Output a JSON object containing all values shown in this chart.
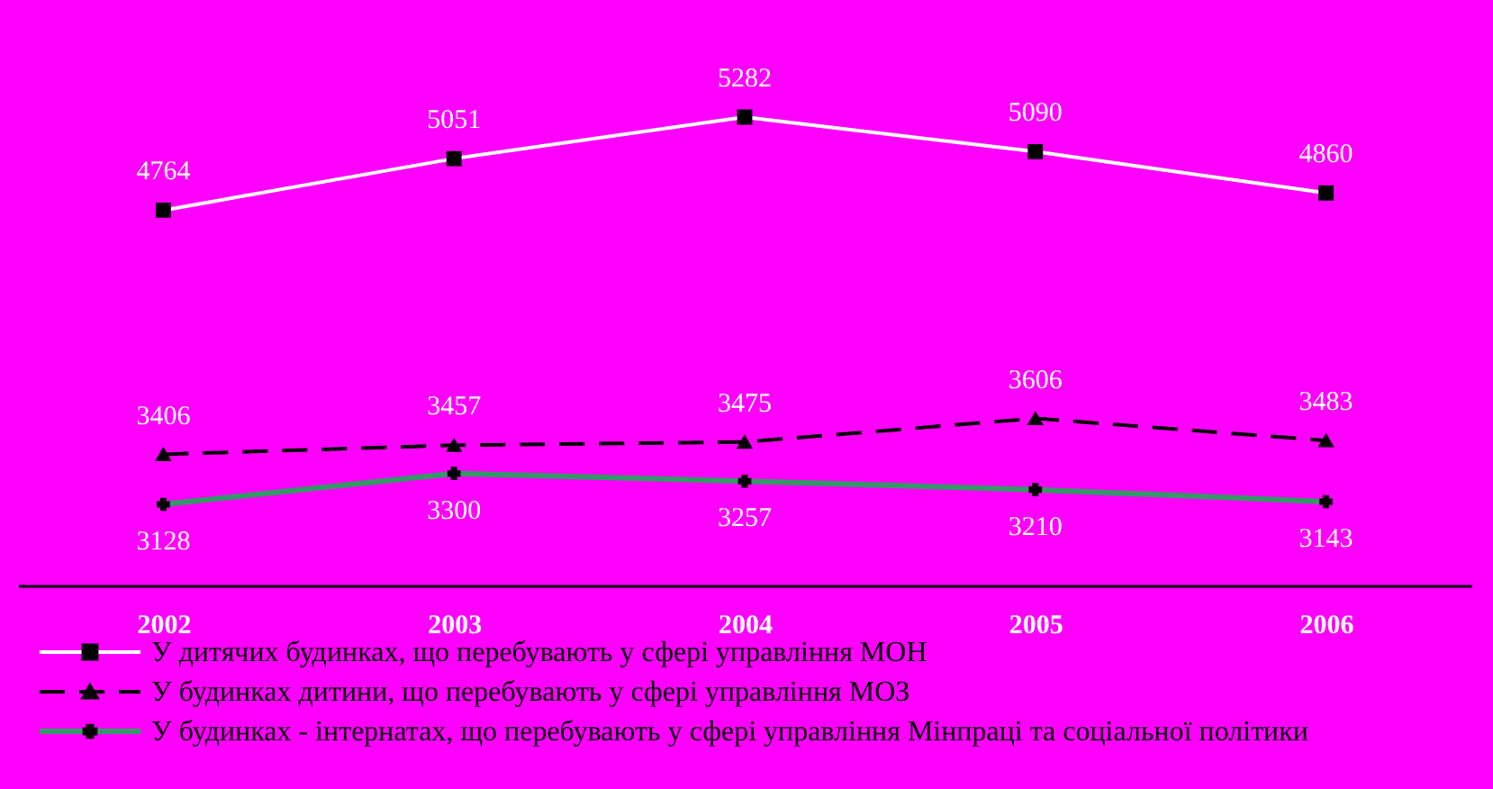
{
  "chart_data": {
    "type": "line",
    "categories": [
      "2002",
      "2003",
      "2004",
      "2005",
      "2006"
    ],
    "data_labels": true,
    "legend": "bottom",
    "grid": false,
    "series": [
      {
        "name": "У дитячих будинках, що перебувають у сфері управління МОН",
        "color": "#ffffff",
        "marker": "square",
        "line_style": "solid",
        "values": [
          4764,
          5051,
          5282,
          5090,
          4860
        ]
      },
      {
        "name": "У будинках дитини, що перебувають у сфері управління МОЗ",
        "color": "#000000",
        "marker": "triangle",
        "line_style": "dashed",
        "values": [
          3406,
          3457,
          3475,
          3606,
          3483
        ]
      },
      {
        "name": "У будинках - інтернатах, що перебувають у сфері управління Мінпраці та соціальної політики",
        "color": "#339966",
        "marker": "cross",
        "line_style": "solid",
        "values": [
          3128,
          3300,
          3257,
          3210,
          3143
        ]
      }
    ]
  }
}
